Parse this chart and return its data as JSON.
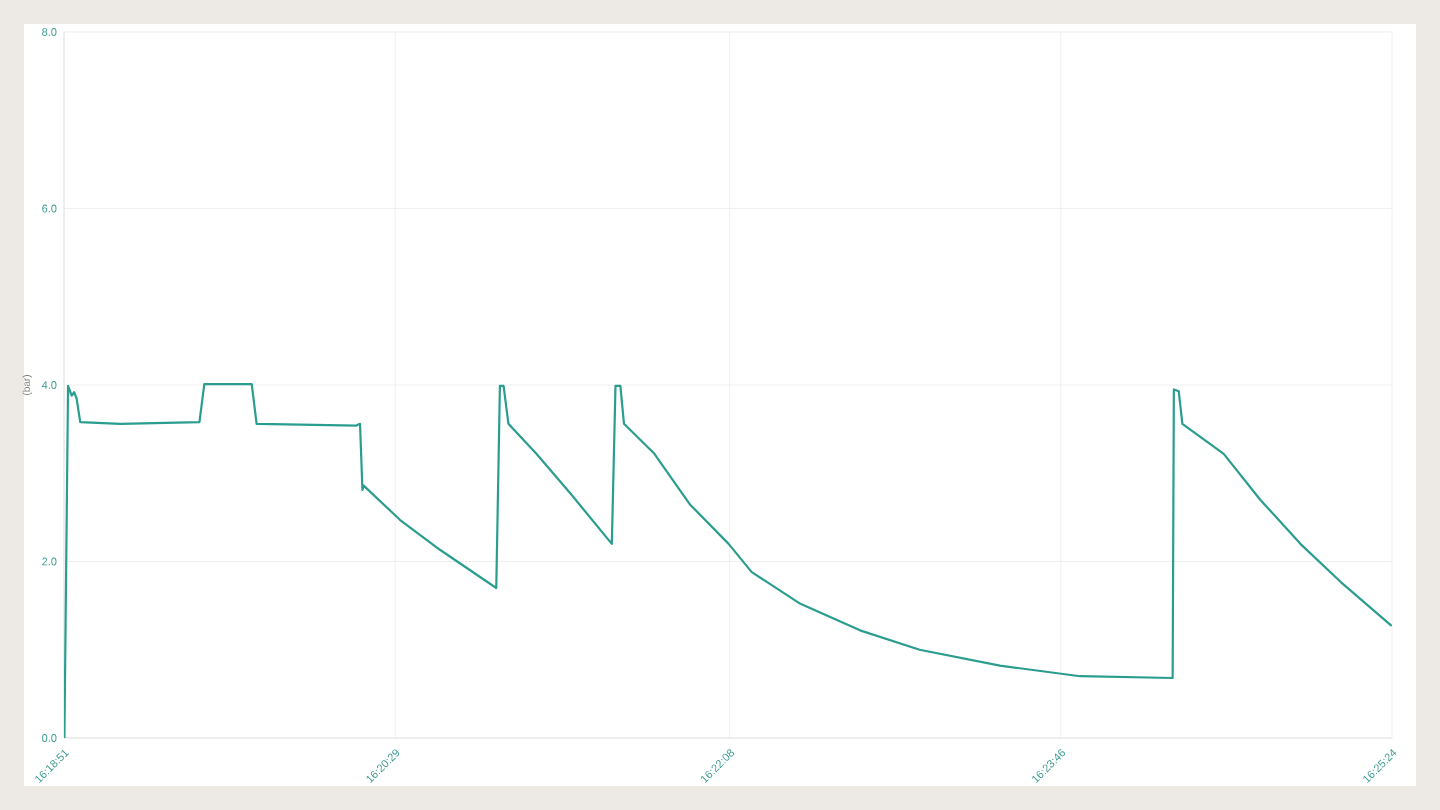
{
  "chart_data": {
    "type": "line",
    "ylabel": "(bar)",
    "color": "#2a9d8f",
    "grid": true,
    "marker": "none",
    "line_style": "solid",
    "x": [
      16.3142,
      16.3145,
      16.3148,
      16.315,
      16.3152,
      16.3155,
      16.3188,
      16.3253,
      16.3257,
      16.3296,
      16.33,
      16.3336,
      16.3382,
      16.3385,
      16.3387,
      16.3388,
      16.3418,
      16.3451,
      16.3497,
      16.35,
      16.3503,
      16.3507,
      16.353,
      16.3558,
      16.3592,
      16.3595,
      16.3599,
      16.3602,
      16.3627,
      16.3656,
      16.3688,
      16.3707,
      16.3747,
      16.3796,
      16.3845,
      16.3911,
      16.3977,
      16.4053,
      16.4054,
      16.4058,
      16.4061,
      16.4095,
      16.4125,
      16.4158,
      16.4191,
      16.4233
    ],
    "values": [
      0,
      3.99,
      3.88,
      3.92,
      3.85,
      3.58,
      3.56,
      3.58,
      4.01,
      4.01,
      3.56,
      3.55,
      3.54,
      3.56,
      2.81,
      2.86,
      2.47,
      2.13,
      1.7,
      3.99,
      3.99,
      3.56,
      3.22,
      2.77,
      2.2,
      3.99,
      3.99,
      3.56,
      3.22,
      2.65,
      2.2,
      1.88,
      1.52,
      1.22,
      1.0,
      0.82,
      0.7,
      0.68,
      3.95,
      3.93,
      3.56,
      3.22,
      2.7,
      2.2,
      1.77,
      1.27
    ],
    "xlim": [
      16.314167,
      16.423333
    ],
    "xticks": [
      {
        "value": 16.314167,
        "label": "16:18:51"
      },
      {
        "value": 16.341389,
        "label": "16:20:29"
      },
      {
        "value": 16.368889,
        "label": "16:22:08"
      },
      {
        "value": 16.396111,
        "label": "16:23:46"
      },
      {
        "value": 16.423333,
        "label": "16:25:24"
      }
    ],
    "ylim": [
      0,
      8
    ],
    "yticks": [
      {
        "value": 0,
        "label": "0.0"
      },
      {
        "value": 2,
        "label": "2.0"
      },
      {
        "value": 4,
        "label": "4.0"
      },
      {
        "value": 6,
        "label": "6.0"
      },
      {
        "value": 8,
        "label": "8.0"
      }
    ]
  }
}
